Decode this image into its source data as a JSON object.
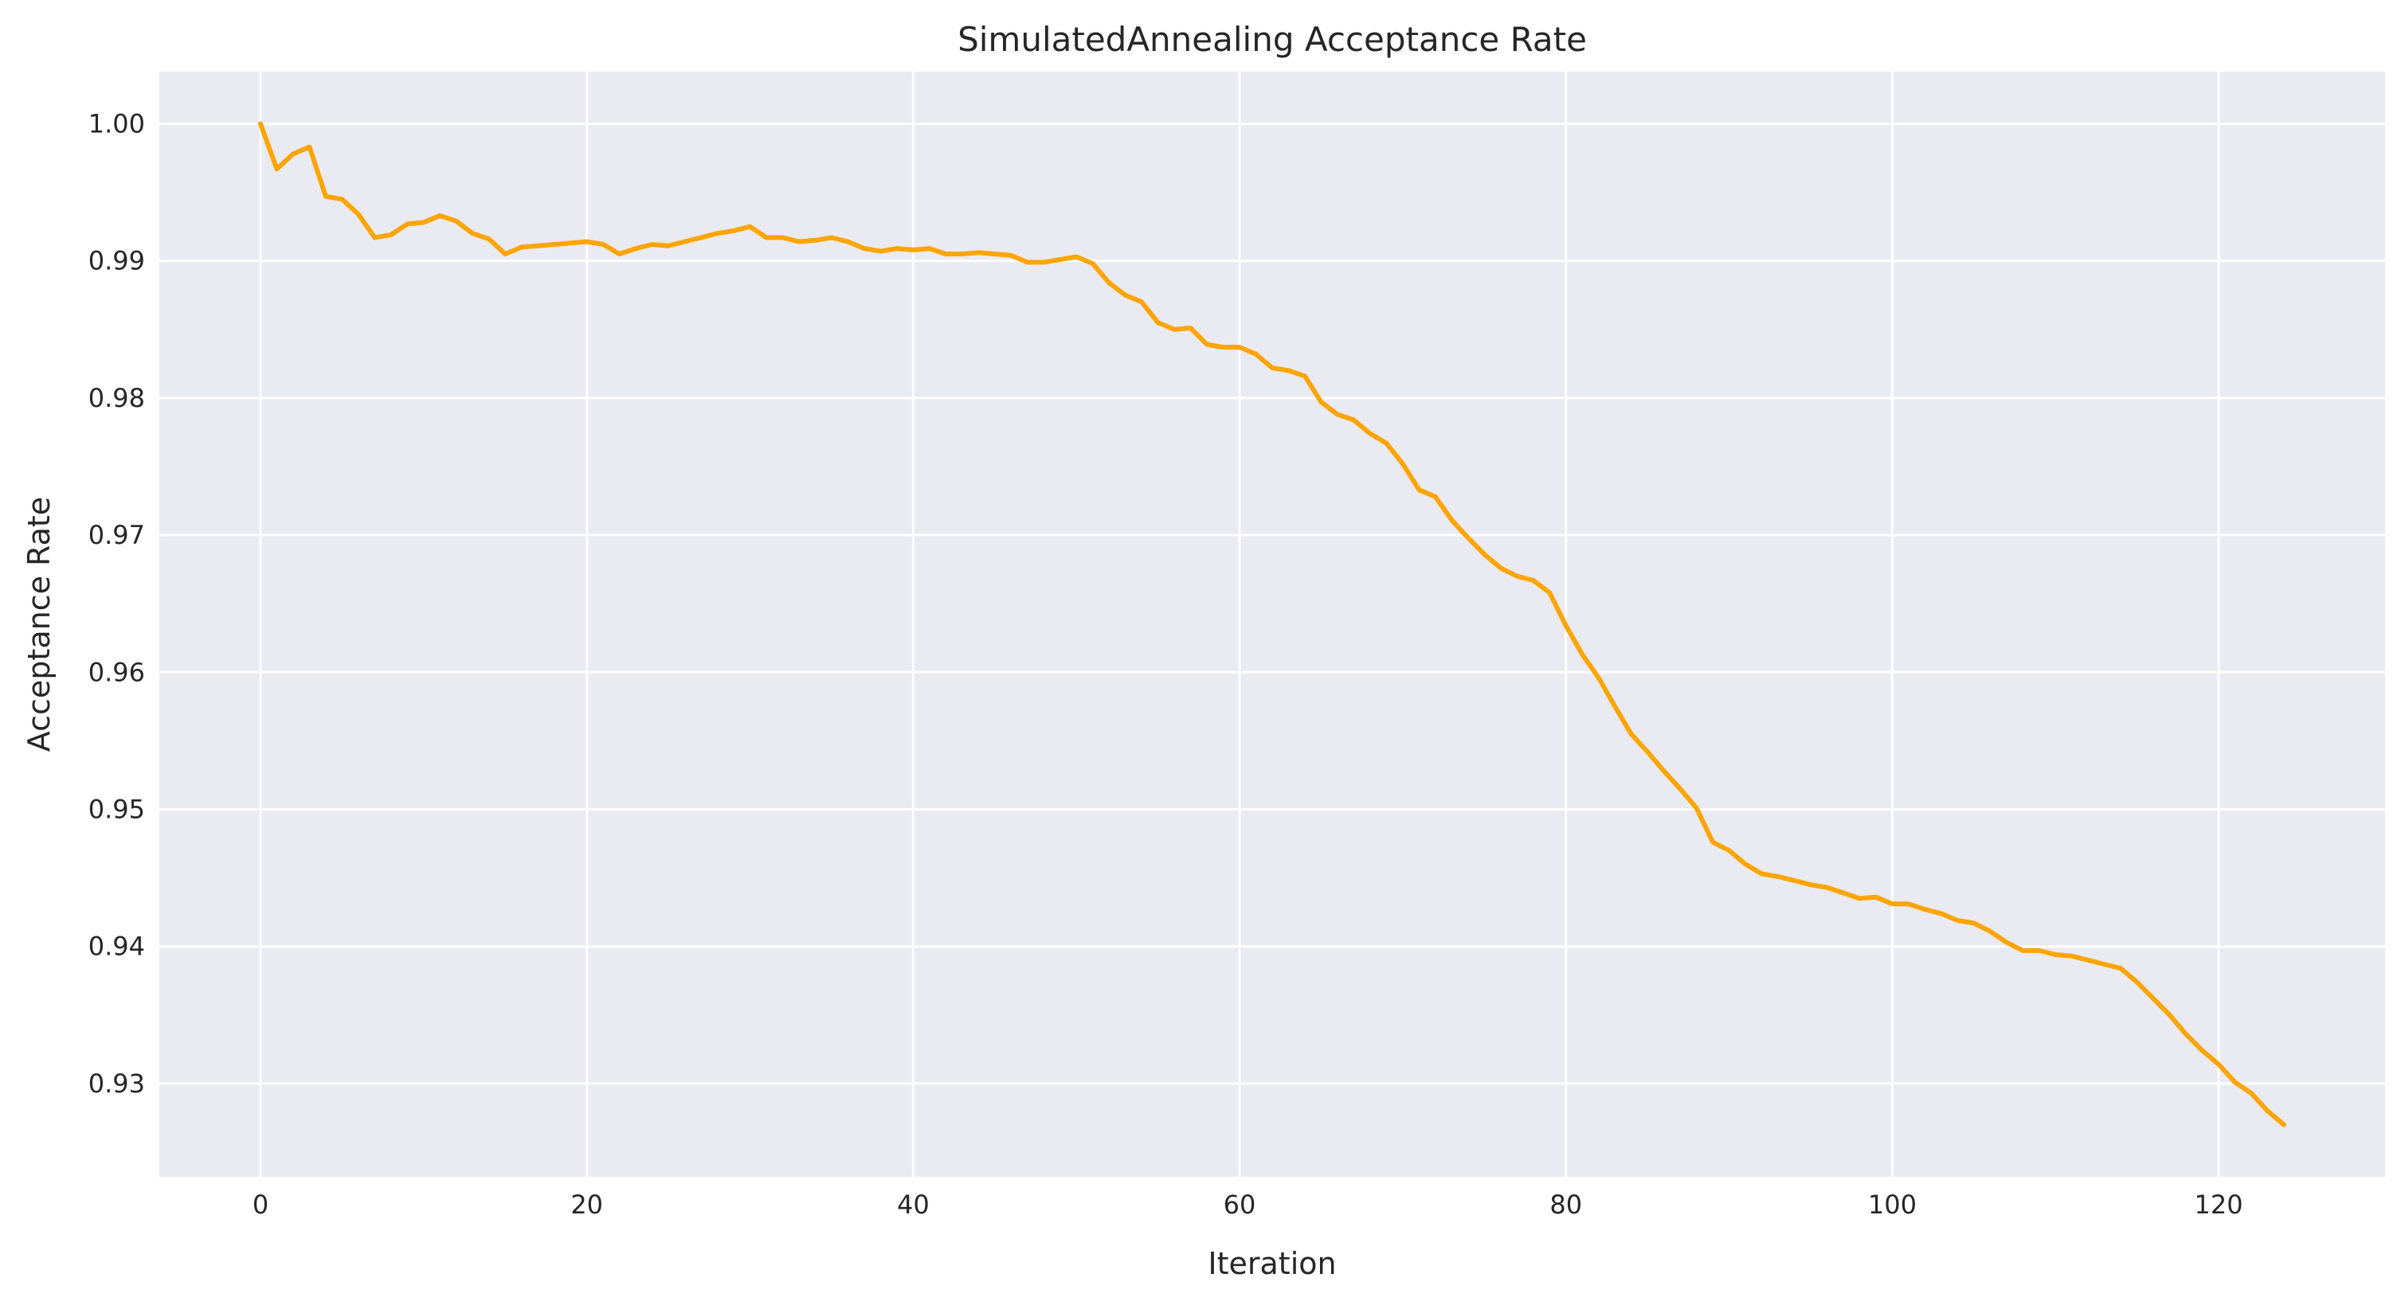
{
  "chart_data": {
    "type": "line",
    "title": "SimulatedAnnealing Acceptance Rate",
    "xlabel": "Iteration",
    "ylabel": "Acceptance Rate",
    "xlim": [
      -6.2,
      130.2
    ],
    "ylim": [
      0.9232,
      1.0038
    ],
    "xticks": [
      0,
      20,
      40,
      60,
      80,
      100,
      120
    ],
    "xtick_labels": [
      "0",
      "20",
      "40",
      "60",
      "80",
      "100",
      "120"
    ],
    "yticks": [
      0.93,
      0.94,
      0.95,
      0.96,
      0.97,
      0.98,
      0.99,
      1.0
    ],
    "ytick_labels": [
      "0.93",
      "0.94",
      "0.95",
      "0.96",
      "0.97",
      "0.98",
      "0.99",
      "1.00"
    ],
    "grid": true,
    "background": "#eaeaf2",
    "grid_color": "#ffffff",
    "line_color": "#ffa500",
    "series": [
      {
        "x": [
          0,
          1,
          2,
          3,
          4,
          5,
          6,
          7,
          8,
          9,
          10,
          11,
          12,
          13,
          14,
          15,
          16,
          17,
          18,
          19,
          20,
          21,
          22,
          23,
          24,
          25,
          26,
          27,
          28,
          29,
          30,
          31,
          32,
          33,
          34,
          35,
          36,
          37,
          38,
          39,
          40,
          41,
          42,
          43,
          44,
          45,
          46,
          47,
          48,
          49,
          50,
          51,
          52,
          53,
          54,
          55,
          56,
          57,
          58,
          59,
          60,
          61,
          62,
          63,
          64,
          65,
          66,
          67,
          68,
          69,
          70,
          71,
          72,
          73,
          74,
          75,
          76,
          77,
          78,
          79,
          80,
          81,
          82,
          83,
          84,
          85,
          86,
          87,
          88,
          89,
          90,
          91,
          92,
          93,
          94,
          95,
          96,
          97,
          98,
          99,
          100,
          101,
          102,
          103,
          104,
          105,
          106,
          107,
          108,
          109,
          110,
          111,
          112,
          113,
          114,
          115,
          116,
          117,
          118,
          119,
          120,
          121,
          122,
          123,
          124
        ],
        "values": [
          1.0,
          0.9967,
          0.9978,
          0.9983,
          0.9947,
          0.9945,
          0.9934,
          0.9917,
          0.9919,
          0.9927,
          0.9928,
          0.9933,
          0.9929,
          0.992,
          0.9916,
          0.9905,
          0.991,
          0.9911,
          0.9912,
          0.9913,
          0.9914,
          0.9912,
          0.9905,
          0.9909,
          0.9912,
          0.9911,
          0.9914,
          0.9917,
          0.992,
          0.9922,
          0.9925,
          0.9917,
          0.9917,
          0.9914,
          0.9915,
          0.9917,
          0.9914,
          0.9909,
          0.9907,
          0.9909,
          0.9908,
          0.9909,
          0.9905,
          0.9905,
          0.9906,
          0.9905,
          0.9904,
          0.9899,
          0.9899,
          0.9901,
          0.9903,
          0.9898,
          0.9884,
          0.9875,
          0.987,
          0.9855,
          0.985,
          0.9851,
          0.9839,
          0.9837,
          0.9837,
          0.9832,
          0.9822,
          0.982,
          0.9816,
          0.9797,
          0.9788,
          0.9784,
          0.9774,
          0.9767,
          0.9752,
          0.9733,
          0.9728,
          0.9711,
          0.9698,
          0.9686,
          0.9676,
          0.967,
          0.9667,
          0.9658,
          0.9634,
          0.9613,
          0.9596,
          0.9575,
          0.9555,
          0.9542,
          0.9528,
          0.9515,
          0.9501,
          0.9476,
          0.947,
          0.946,
          0.9453,
          0.9451,
          0.9448,
          0.9445,
          0.9443,
          0.9439,
          0.9435,
          0.9436,
          0.9431,
          0.9431,
          0.9427,
          0.9424,
          0.9419,
          0.9417,
          0.9411,
          0.9403,
          0.9397,
          0.9397,
          0.9394,
          0.9393,
          0.939,
          0.9387,
          0.9384,
          0.9374,
          0.9362,
          0.935,
          0.9336,
          0.9324,
          0.9314,
          0.9301,
          0.9293,
          0.928,
          0.927
        ]
      }
    ]
  }
}
